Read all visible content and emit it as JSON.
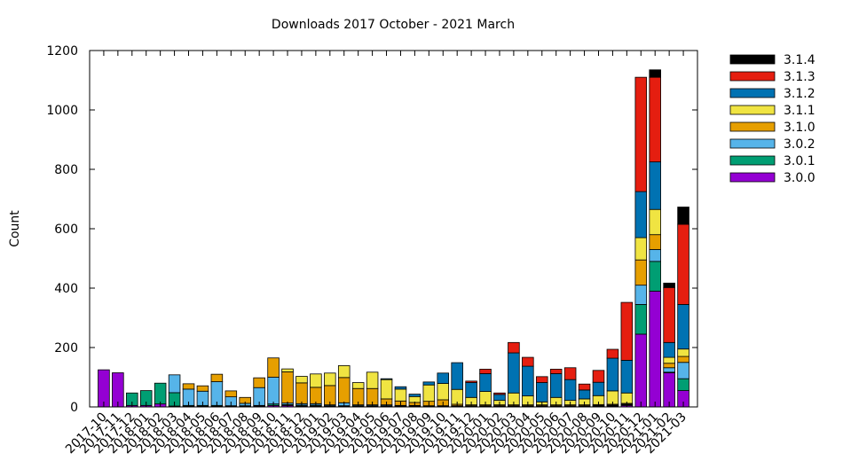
{
  "chart_data": {
    "type": "bar",
    "stacked": true,
    "title": "Downloads 2017 October - 2021 March",
    "xlabel": "",
    "ylabel": "Count",
    "ylim": [
      0,
      1200
    ],
    "yticks": [
      0,
      200,
      400,
      600,
      800,
      1000,
      1200
    ],
    "grid": false,
    "legend_position": "top-right outside",
    "categories": [
      "2017-10",
      "2017-11",
      "2017-12",
      "2018-01",
      "2018-02",
      "2018-03",
      "2018-04",
      "2018-05",
      "2018-06",
      "2018-07",
      "2018-08",
      "2018-09",
      "2018-10",
      "2018-11",
      "2018-12",
      "2019-01",
      "2019-02",
      "2019-03",
      "2019-04",
      "2019-05",
      "2019-06",
      "2019-07",
      "2019-08",
      "2019-09",
      "2019-10",
      "2019-11",
      "2019-12",
      "2020-01",
      "2020-02",
      "2020-03",
      "2020-04",
      "2020-05",
      "2020-06",
      "2020-07",
      "2020-08",
      "2020-09",
      "2020-10",
      "2020-11",
      "2020-12",
      "2021-01",
      "2021-02",
      "2021-03"
    ],
    "series": [
      {
        "name": "3.0.0",
        "color": "#9400d3",
        "values": [
          125,
          115,
          5,
          5,
          10,
          3,
          2,
          2,
          2,
          2,
          2,
          3,
          5,
          5,
          3,
          3,
          2,
          2,
          2,
          2,
          2,
          2,
          2,
          1,
          1,
          1,
          1,
          1,
          1,
          1,
          1,
          1,
          1,
          1,
          1,
          2,
          3,
          5,
          245,
          390,
          115,
          55
        ]
      },
      {
        "name": "3.0.1",
        "color": "#009e73",
        "values": [
          0,
          0,
          42,
          50,
          70,
          45,
          3,
          3,
          3,
          2,
          2,
          2,
          5,
          3,
          3,
          3,
          2,
          2,
          2,
          2,
          2,
          1,
          1,
          1,
          1,
          1,
          1,
          1,
          1,
          1,
          1,
          1,
          1,
          1,
          1,
          1,
          1,
          2,
          100,
          100,
          2,
          40
        ]
      },
      {
        "name": "3.0.2",
        "color": "#56b4e9",
        "values": [
          0,
          0,
          0,
          0,
          0,
          60,
          55,
          48,
          80,
          30,
          8,
          60,
          90,
          5,
          5,
          5,
          3,
          10,
          3,
          3,
          3,
          2,
          2,
          2,
          2,
          2,
          2,
          2,
          2,
          2,
          2,
          2,
          2,
          2,
          2,
          2,
          2,
          2,
          65,
          40,
          15,
          55
        ]
      },
      {
        "name": "3.1.0",
        "color": "#e69f00",
        "values": [
          0,
          0,
          0,
          0,
          0,
          0,
          18,
          18,
          25,
          20,
          20,
          33,
          65,
          105,
          70,
          55,
          65,
          85,
          55,
          55,
          20,
          15,
          10,
          15,
          20,
          5,
          3,
          3,
          3,
          3,
          3,
          3,
          3,
          3,
          3,
          3,
          3,
          3,
          85,
          50,
          15,
          20
        ]
      },
      {
        "name": "3.1.1",
        "color": "#f0e442",
        "values": [
          0,
          0,
          0,
          0,
          0,
          0,
          0,
          0,
          0,
          0,
          0,
          0,
          0,
          10,
          22,
          45,
          42,
          40,
          20,
          55,
          65,
          40,
          20,
          55,
          55,
          50,
          25,
          45,
          15,
          40,
          30,
          10,
          25,
          15,
          20,
          30,
          45,
          35,
          75,
          85,
          20,
          25
        ]
      },
      {
        "name": "3.1.2",
        "color": "#0072b2",
        "values": [
          0,
          0,
          0,
          0,
          0,
          0,
          0,
          0,
          0,
          0,
          0,
          0,
          0,
          0,
          0,
          0,
          0,
          0,
          0,
          0,
          3,
          8,
          8,
          10,
          35,
          90,
          50,
          60,
          20,
          135,
          100,
          65,
          80,
          70,
          30,
          45,
          110,
          110,
          155,
          160,
          50,
          150
        ]
      },
      {
        "name": "3.1.3",
        "color": "#e51e10",
        "values": [
          0,
          0,
          0,
          0,
          0,
          0,
          0,
          0,
          0,
          0,
          0,
          0,
          0,
          0,
          0,
          0,
          0,
          0,
          0,
          0,
          0,
          0,
          0,
          0,
          0,
          0,
          5,
          15,
          5,
          35,
          30,
          20,
          15,
          40,
          20,
          40,
          30,
          195,
          385,
          285,
          185,
          270
        ]
      },
      {
        "name": "3.1.4",
        "color": "#000000",
        "values": [
          0,
          0,
          0,
          0,
          0,
          0,
          0,
          0,
          0,
          0,
          0,
          0,
          0,
          0,
          0,
          0,
          0,
          0,
          0,
          0,
          0,
          0,
          0,
          0,
          0,
          0,
          0,
          0,
          0,
          0,
          0,
          0,
          0,
          0,
          0,
          0,
          0,
          0,
          0,
          25,
          15,
          58
        ]
      }
    ]
  }
}
